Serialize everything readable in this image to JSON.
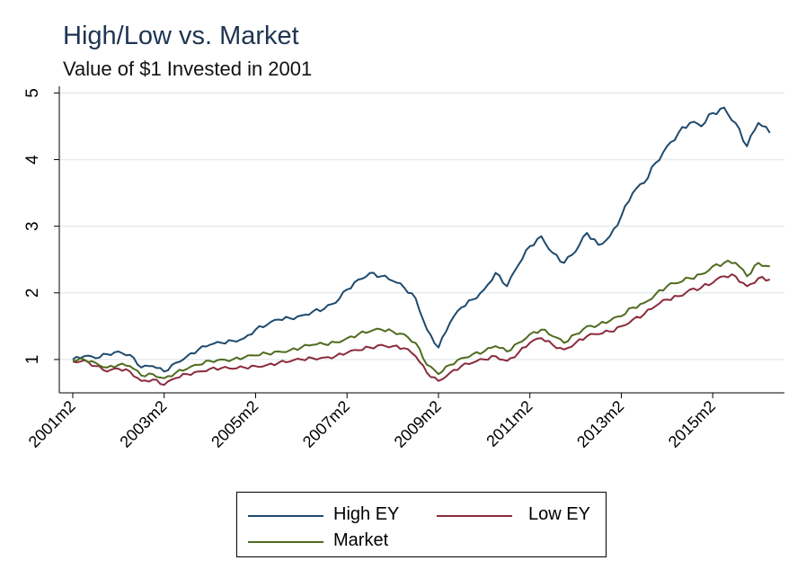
{
  "header": {
    "title": "High/Low vs. Market",
    "subtitle": "Value of $1 Invested in 2001"
  },
  "colors": {
    "high_ey": "#1f4a6e",
    "low_ey": "#8b2a3c",
    "market": "#4f6b1f",
    "grid": "#e6ecef",
    "title": "#1f3552"
  },
  "chart_data": {
    "type": "line",
    "title": "High/Low vs. Market",
    "subtitle": "Value of $1 Invested in 2001",
    "xlabel": "",
    "ylabel": "",
    "x_range": [
      "2001m2",
      "2016m6"
    ],
    "xticks": [
      "2001m2",
      "2003m2",
      "2005m2",
      "2007m2",
      "2009m2",
      "2011m2",
      "2013m2",
      "2015m2"
    ],
    "ylim": [
      0.5,
      5.1
    ],
    "yticks": [
      1,
      2,
      3,
      4,
      5
    ],
    "grid": true,
    "legend_position": "bottom",
    "series": [
      {
        "name": "High EY",
        "color": "#1f4a6e",
        "points": [
          [
            "2001m2",
            1.0
          ],
          [
            "2001m5",
            1.05
          ],
          [
            "2001m8",
            1.02
          ],
          [
            "2001m11",
            1.08
          ],
          [
            "2002m2",
            1.12
          ],
          [
            "2002m5",
            1.07
          ],
          [
            "2002m8",
            0.88
          ],
          [
            "2002m11",
            0.9
          ],
          [
            "2003m2",
            0.82
          ],
          [
            "2003m5",
            0.95
          ],
          [
            "2003m8",
            1.05
          ],
          [
            "2003m11",
            1.15
          ],
          [
            "2004m2",
            1.22
          ],
          [
            "2004m5",
            1.25
          ],
          [
            "2004m8",
            1.28
          ],
          [
            "2004m11",
            1.32
          ],
          [
            "2005m2",
            1.45
          ],
          [
            "2005m5",
            1.52
          ],
          [
            "2005m8",
            1.6
          ],
          [
            "2005m11",
            1.62
          ],
          [
            "2006m2",
            1.66
          ],
          [
            "2006m5",
            1.72
          ],
          [
            "2006m8",
            1.76
          ],
          [
            "2006m11",
            1.85
          ],
          [
            "2007m2",
            2.05
          ],
          [
            "2007m5",
            2.2
          ],
          [
            "2007m8",
            2.3
          ],
          [
            "2007m11",
            2.25
          ],
          [
            "2008m2",
            2.18
          ],
          [
            "2008m5",
            2.08
          ],
          [
            "2008m8",
            1.92
          ],
          [
            "2008m11",
            1.45
          ],
          [
            "2009m2",
            1.18
          ],
          [
            "2009m5",
            1.55
          ],
          [
            "2009m8",
            1.78
          ],
          [
            "2009m11",
            1.9
          ],
          [
            "2010m2",
            2.05
          ],
          [
            "2010m5",
            2.3
          ],
          [
            "2010m8",
            2.1
          ],
          [
            "2010m11",
            2.42
          ],
          [
            "2011m2",
            2.7
          ],
          [
            "2011m5",
            2.85
          ],
          [
            "2011m8",
            2.6
          ],
          [
            "2011m11",
            2.45
          ],
          [
            "2012m2",
            2.62
          ],
          [
            "2012m5",
            2.9
          ],
          [
            "2012m8",
            2.72
          ],
          [
            "2012m11",
            2.85
          ],
          [
            "2013m2",
            3.15
          ],
          [
            "2013m5",
            3.5
          ],
          [
            "2013m8",
            3.65
          ],
          [
            "2013m11",
            3.95
          ],
          [
            "2014m2",
            4.2
          ],
          [
            "2014m5",
            4.4
          ],
          [
            "2014m8",
            4.55
          ],
          [
            "2014m11",
            4.5
          ],
          [
            "2015m2",
            4.7
          ],
          [
            "2015m5",
            4.78
          ],
          [
            "2015m8",
            4.55
          ],
          [
            "2015m11",
            4.2
          ],
          [
            "2016m2",
            4.55
          ],
          [
            "2016m5",
            4.4
          ]
        ]
      },
      {
        "name": "Low EY",
        "color": "#8b2a3c",
        "points": [
          [
            "2001m2",
            0.97
          ],
          [
            "2001m5",
            0.99
          ],
          [
            "2001m8",
            0.9
          ],
          [
            "2001m11",
            0.82
          ],
          [
            "2002m2",
            0.86
          ],
          [
            "2002m5",
            0.82
          ],
          [
            "2002m8",
            0.68
          ],
          [
            "2002m11",
            0.7
          ],
          [
            "2003m2",
            0.62
          ],
          [
            "2003m5",
            0.72
          ],
          [
            "2003m8",
            0.78
          ],
          [
            "2003m11",
            0.82
          ],
          [
            "2004m2",
            0.86
          ],
          [
            "2004m5",
            0.87
          ],
          [
            "2004m8",
            0.86
          ],
          [
            "2004m11",
            0.88
          ],
          [
            "2005m2",
            0.9
          ],
          [
            "2005m5",
            0.92
          ],
          [
            "2005m8",
            0.95
          ],
          [
            "2005m11",
            0.97
          ],
          [
            "2006m2",
            1.0
          ],
          [
            "2006m5",
            1.02
          ],
          [
            "2006m8",
            1.03
          ],
          [
            "2006m11",
            1.05
          ],
          [
            "2007m2",
            1.1
          ],
          [
            "2007m5",
            1.14
          ],
          [
            "2007m8",
            1.18
          ],
          [
            "2007m11",
            1.22
          ],
          [
            "2008m2",
            1.2
          ],
          [
            "2008m5",
            1.17
          ],
          [
            "2008m8",
            1.05
          ],
          [
            "2008m11",
            0.8
          ],
          [
            "2009m2",
            0.68
          ],
          [
            "2009m5",
            0.8
          ],
          [
            "2009m8",
            0.9
          ],
          [
            "2009m11",
            0.95
          ],
          [
            "2010m2",
            1.0
          ],
          [
            "2010m5",
            1.05
          ],
          [
            "2010m8",
            0.98
          ],
          [
            "2010m11",
            1.1
          ],
          [
            "2011m2",
            1.25
          ],
          [
            "2011m5",
            1.32
          ],
          [
            "2011m8",
            1.22
          ],
          [
            "2011m11",
            1.15
          ],
          [
            "2012m2",
            1.25
          ],
          [
            "2012m5",
            1.35
          ],
          [
            "2012m8",
            1.38
          ],
          [
            "2012m11",
            1.42
          ],
          [
            "2013m2",
            1.5
          ],
          [
            "2013m5",
            1.6
          ],
          [
            "2013m8",
            1.68
          ],
          [
            "2013m11",
            1.8
          ],
          [
            "2014m2",
            1.9
          ],
          [
            "2014m5",
            1.95
          ],
          [
            "2014m8",
            2.05
          ],
          [
            "2014m11",
            2.08
          ],
          [
            "2015m2",
            2.15
          ],
          [
            "2015m5",
            2.25
          ],
          [
            "2015m8",
            2.25
          ],
          [
            "2015m11",
            2.1
          ],
          [
            "2016m2",
            2.22
          ],
          [
            "2016m5",
            2.2
          ]
        ]
      },
      {
        "name": "Market",
        "color": "#4f6b1f",
        "points": [
          [
            "2001m2",
            0.98
          ],
          [
            "2001m5",
            1.0
          ],
          [
            "2001m8",
            0.95
          ],
          [
            "2001m11",
            0.88
          ],
          [
            "2002m2",
            0.92
          ],
          [
            "2002m5",
            0.9
          ],
          [
            "2002m8",
            0.76
          ],
          [
            "2002m11",
            0.78
          ],
          [
            "2003m2",
            0.72
          ],
          [
            "2003m5",
            0.8
          ],
          [
            "2003m8",
            0.86
          ],
          [
            "2003m11",
            0.92
          ],
          [
            "2004m2",
            0.98
          ],
          [
            "2004m5",
            1.0
          ],
          [
            "2004m8",
            1.0
          ],
          [
            "2004m11",
            1.03
          ],
          [
            "2005m2",
            1.06
          ],
          [
            "2005m5",
            1.09
          ],
          [
            "2005m8",
            1.12
          ],
          [
            "2005m11",
            1.14
          ],
          [
            "2006m2",
            1.18
          ],
          [
            "2006m5",
            1.22
          ],
          [
            "2006m8",
            1.23
          ],
          [
            "2006m11",
            1.26
          ],
          [
            "2007m2",
            1.32
          ],
          [
            "2007m5",
            1.38
          ],
          [
            "2007m8",
            1.42
          ],
          [
            "2007m11",
            1.45
          ],
          [
            "2008m2",
            1.42
          ],
          [
            "2008m5",
            1.38
          ],
          [
            "2008m8",
            1.25
          ],
          [
            "2008m11",
            0.92
          ],
          [
            "2009m2",
            0.78
          ],
          [
            "2009m5",
            0.92
          ],
          [
            "2009m8",
            1.02
          ],
          [
            "2009m11",
            1.08
          ],
          [
            "2010m2",
            1.12
          ],
          [
            "2010m5",
            1.2
          ],
          [
            "2010m8",
            1.12
          ],
          [
            "2010m11",
            1.25
          ],
          [
            "2011m2",
            1.38
          ],
          [
            "2011m5",
            1.45
          ],
          [
            "2011m8",
            1.35
          ],
          [
            "2011m11",
            1.25
          ],
          [
            "2012m2",
            1.38
          ],
          [
            "2012m5",
            1.5
          ],
          [
            "2012m8",
            1.52
          ],
          [
            "2012m11",
            1.58
          ],
          [
            "2013m2",
            1.65
          ],
          [
            "2013m5",
            1.78
          ],
          [
            "2013m8",
            1.85
          ],
          [
            "2013m11",
            1.98
          ],
          [
            "2014m2",
            2.1
          ],
          [
            "2014m5",
            2.15
          ],
          [
            "2014m8",
            2.22
          ],
          [
            "2014m11",
            2.28
          ],
          [
            "2015m2",
            2.4
          ],
          [
            "2015m5",
            2.45
          ],
          [
            "2015m8",
            2.45
          ],
          [
            "2015m11",
            2.25
          ],
          [
            "2016m2",
            2.45
          ],
          [
            "2016m5",
            2.4
          ]
        ]
      }
    ]
  },
  "legend": {
    "items": [
      {
        "label": "High EY",
        "color": "#1f4a6e"
      },
      {
        "label": "Low EY",
        "color": "#8b2a3c"
      },
      {
        "label": "Market",
        "color": "#4f6b1f"
      }
    ]
  }
}
